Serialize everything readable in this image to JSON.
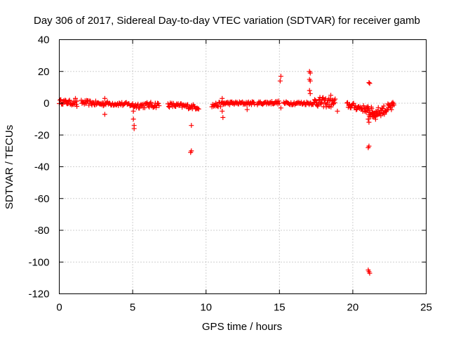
{
  "chart_data": {
    "type": "scatter",
    "title": "Day 306 of 2017, Sidereal Day-to-day VTEC variation (SDTVAR) for receiver gamb",
    "xlabel": "GPS time / hours",
    "ylabel": "SDTVAR / TECUs",
    "xlim": [
      0,
      25
    ],
    "ylim": [
      -120,
      40
    ],
    "xticks": [
      0,
      5,
      10,
      15,
      20,
      25
    ],
    "yticks": [
      -120,
      -100,
      -80,
      -60,
      -40,
      -20,
      0,
      20,
      40
    ],
    "xtick_labels": [
      "0",
      "5",
      "10",
      "15",
      "20",
      "25"
    ],
    "ytick_labels": [
      "-120",
      "-100",
      "-80",
      "-60",
      "-40",
      "-20",
      "0",
      "20",
      "40"
    ],
    "grid": true,
    "marker": "+",
    "color": "#ff0000",
    "segments": [
      {
        "x0": 0.0,
        "x1": 1.2,
        "y0": 1.0,
        "y1": 0.0,
        "spread": 1.5,
        "n": 25
      },
      {
        "x0": 1.5,
        "x1": 3.0,
        "y0": 0.5,
        "y1": -0.5,
        "spread": 1.5,
        "n": 30
      },
      {
        "x0": 3.0,
        "x1": 4.2,
        "y0": 0.0,
        "y1": -0.5,
        "spread": 1.2,
        "n": 22
      },
      {
        "x0": 4.2,
        "x1": 5.0,
        "y0": -0.5,
        "y1": -1.0,
        "spread": 1.2,
        "n": 14
      },
      {
        "x0": 5.0,
        "x1": 6.8,
        "y0": -1.5,
        "y1": -1.0,
        "spread": 1.8,
        "n": 36
      },
      {
        "x0": 7.4,
        "x1": 9.5,
        "y0": -1.0,
        "y1": -2.5,
        "spread": 1.5,
        "n": 40
      },
      {
        "x0": 10.4,
        "x1": 11.2,
        "y0": -1.5,
        "y1": -0.5,
        "spread": 1.5,
        "n": 16
      },
      {
        "x0": 11.2,
        "x1": 13.3,
        "y0": 0.0,
        "y1": 0.0,
        "spread": 1.0,
        "n": 42
      },
      {
        "x0": 13.5,
        "x1": 15.0,
        "y0": 0.0,
        "y1": 0.5,
        "spread": 1.0,
        "n": 30
      },
      {
        "x0": 15.3,
        "x1": 17.4,
        "y0": 0.0,
        "y1": 0.0,
        "spread": 1.0,
        "n": 40
      },
      {
        "x0": 17.4,
        "x1": 18.8,
        "y0": 1.0,
        "y1": 0.0,
        "spread": 3.0,
        "n": 40
      },
      {
        "x0": 19.6,
        "x1": 21.0,
        "y0": -1.0,
        "y1": -4.0,
        "spread": 2.0,
        "n": 32
      },
      {
        "x0": 21.0,
        "x1": 21.6,
        "y0": -5.0,
        "y1": -7.0,
        "spread": 3.5,
        "n": 26
      },
      {
        "x0": 21.6,
        "x1": 22.8,
        "y0": -6.0,
        "y1": -2.0,
        "spread": 3.0,
        "n": 36
      }
    ],
    "points": [
      {
        "x": 0.1,
        "y": 2
      },
      {
        "x": 1.1,
        "y": 3
      },
      {
        "x": 1.2,
        "y": -2
      },
      {
        "x": 3.1,
        "y": 3
      },
      {
        "x": 3.1,
        "y": -7
      },
      {
        "x": 5.05,
        "y": -5
      },
      {
        "x": 5.05,
        "y": -10
      },
      {
        "x": 5.1,
        "y": -14
      },
      {
        "x": 5.1,
        "y": -16
      },
      {
        "x": 9.0,
        "y": -14
      },
      {
        "x": 9.0,
        "y": -30
      },
      {
        "x": 8.95,
        "y": -31
      },
      {
        "x": 11.1,
        "y": 3
      },
      {
        "x": 11.1,
        "y": -5
      },
      {
        "x": 11.15,
        "y": -9
      },
      {
        "x": 12.8,
        "y": -4
      },
      {
        "x": 15.1,
        "y": 17
      },
      {
        "x": 15.05,
        "y": 14
      },
      {
        "x": 15.1,
        "y": -3
      },
      {
        "x": 17.05,
        "y": 20
      },
      {
        "x": 17.1,
        "y": 19
      },
      {
        "x": 17.05,
        "y": 15
      },
      {
        "x": 17.1,
        "y": 14
      },
      {
        "x": 17.05,
        "y": 8
      },
      {
        "x": 17.1,
        "y": 6
      },
      {
        "x": 18.5,
        "y": 5
      },
      {
        "x": 18.95,
        "y": -5
      },
      {
        "x": 21.1,
        "y": 13
      },
      {
        "x": 21.15,
        "y": 12.5
      },
      {
        "x": 21.05,
        "y": -10
      },
      {
        "x": 21.1,
        "y": -12
      },
      {
        "x": 21.1,
        "y": -27
      },
      {
        "x": 21.05,
        "y": -28
      },
      {
        "x": 21.05,
        "y": -105
      },
      {
        "x": 21.1,
        "y": -106
      },
      {
        "x": 21.15,
        "y": -107
      }
    ]
  }
}
